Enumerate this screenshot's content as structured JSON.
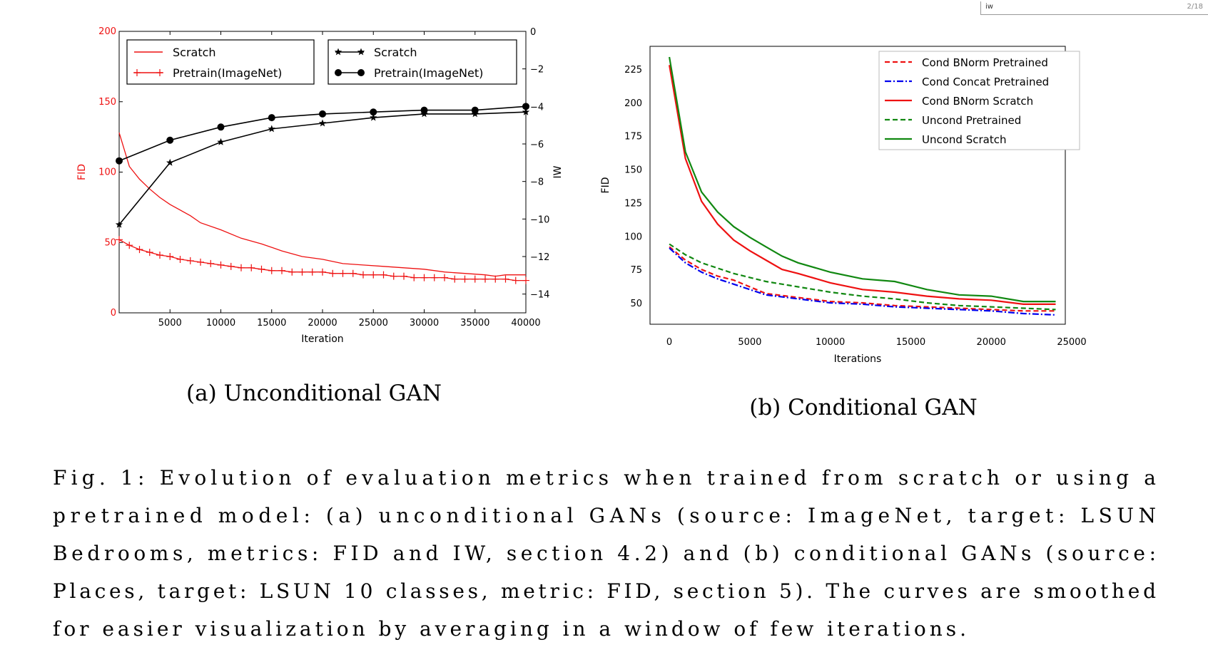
{
  "viewer": {
    "search_text": "iw",
    "page_indicator": "2/18"
  },
  "subfigure_a_caption": "(a) Unconditional GAN",
  "subfigure_b_caption": "(b) Conditional GAN",
  "caption_lines": [
    "Fig. 1: Evolution of evaluation metrics when trained from scratch or using a",
    "pretrained model: (a) unconditional GANs (source: ImageNet, target: LSUN",
    "Bedrooms, metrics: FID and IW, section 4.2) and (b) conditional GANs (source:",
    "Places, target: LSUN 10 classes, metric: FID, section 5). The curves are smoothed",
    "for easier visualization by averaging in a window of few iterations."
  ],
  "colors": {
    "red": "#ee1111",
    "black": "#000000",
    "blue": "#0000ee",
    "green": "#118811"
  },
  "chart_data": [
    {
      "type": "line",
      "xlabel": "Iteration",
      "ylabel": "FID",
      "y2label": "IW",
      "xlim": [
        0,
        40000
      ],
      "ylim": [
        0,
        200
      ],
      "y2lim": [
        0,
        -15
      ],
      "xticks": [
        5000,
        10000,
        15000,
        20000,
        25000,
        30000,
        35000,
        40000
      ],
      "yticks": [
        0,
        50,
        100,
        150,
        200
      ],
      "y2ticks": [
        0,
        -2,
        -4,
        -6,
        -8,
        -10,
        -12,
        -14
      ],
      "series": [
        {
          "name": "Scratch",
          "axis": "left",
          "color": "#ee1111",
          "marker": "none",
          "x": [
            0,
            1000,
            2000,
            3000,
            4000,
            5000,
            7000,
            8000,
            10000,
            12000,
            14000,
            16000,
            18000,
            20000,
            22000,
            24000,
            26000,
            28000,
            30000,
            32000,
            34000,
            36000,
            37000,
            38000,
            40000
          ],
          "y": [
            128,
            104,
            95,
            88,
            82,
            77,
            69,
            64,
            59,
            53,
            49,
            44,
            40,
            38,
            35,
            34,
            33,
            32,
            31,
            29,
            28,
            27,
            26,
            27,
            27
          ]
        },
        {
          "name": "Pretrain(ImageNet)",
          "axis": "left",
          "color": "#ee1111",
          "marker": "plus",
          "x": [
            0,
            1000,
            2000,
            3000,
            4000,
            5000,
            6000,
            7000,
            8000,
            9000,
            10000,
            11000,
            12000,
            13000,
            14000,
            15000,
            16000,
            17000,
            18000,
            19000,
            20000,
            21000,
            22000,
            23000,
            24000,
            25000,
            26000,
            27000,
            28000,
            29000,
            30000,
            31000,
            32000,
            33000,
            34000,
            35000,
            36000,
            37000,
            38000,
            39000,
            40000
          ],
          "y": [
            52,
            48,
            45,
            43,
            41,
            40,
            38,
            37,
            36,
            35,
            34,
            33,
            32,
            32,
            31,
            30,
            30,
            29,
            29,
            29,
            29,
            28,
            28,
            28,
            27,
            27,
            27,
            26,
            26,
            25,
            25,
            25,
            25,
            24,
            24,
            24,
            24,
            24,
            24,
            23,
            23
          ]
        },
        {
          "name": "Scratch",
          "axis": "right",
          "color": "#000000",
          "marker": "star",
          "x": [
            0,
            5000,
            10000,
            15000,
            20000,
            25000,
            30000,
            35000,
            40000
          ],
          "y": [
            -10.3,
            -7.0,
            -5.9,
            -5.2,
            -4.9,
            -4.6,
            -4.4,
            -4.4,
            -4.3
          ]
        },
        {
          "name": "Pretrain(ImageNet)",
          "axis": "right",
          "color": "#000000",
          "marker": "circle",
          "x": [
            0,
            5000,
            10000,
            15000,
            20000,
            25000,
            30000,
            35000,
            40000
          ],
          "y": [
            -6.9,
            -5.8,
            -5.1,
            -4.6,
            -4.4,
            -4.3,
            -4.2,
            -4.2,
            -4.0
          ]
        }
      ]
    },
    {
      "type": "line",
      "xlabel": "Iterations",
      "ylabel": "FID",
      "xlim": [
        -1200,
        24600
      ],
      "ylim": [
        34,
        242
      ],
      "xticks": [
        0,
        5000,
        10000,
        15000,
        20000,
        25000
      ],
      "yticks": [
        50,
        75,
        100,
        125,
        150,
        175,
        200,
        225
      ],
      "series": [
        {
          "name": "Cond BNorm Pretrained",
          "color": "#ee1111",
          "dash": "dashed",
          "x": [
            0,
            1000,
            2000,
            3000,
            4000,
            5000,
            6000,
            8000,
            10000,
            12000,
            14000,
            16000,
            18000,
            20000,
            22000,
            24000
          ],
          "y": [
            92,
            82,
            75,
            70,
            67,
            62,
            57,
            54,
            51,
            50,
            48,
            47,
            46,
            45,
            44,
            44
          ]
        },
        {
          "name": "Cond Concat Pretrained",
          "color": "#0000ee",
          "dash": "dashdot",
          "x": [
            0,
            1000,
            2000,
            3000,
            4000,
            5000,
            6000,
            8000,
            10000,
            12000,
            14000,
            16000,
            18000,
            20000,
            22000,
            24000
          ],
          "y": [
            91,
            80,
            73,
            68,
            64,
            60,
            56,
            53,
            50,
            49,
            47,
            46,
            45,
            44,
            42,
            41
          ]
        },
        {
          "name": "Cond BNorm Scratch",
          "color": "#ee1111",
          "dash": "solid",
          "x": [
            0,
            1000,
            2000,
            3000,
            4000,
            5000,
            6000,
            7000,
            8000,
            10000,
            12000,
            14000,
            16000,
            18000,
            20000,
            22000,
            24000
          ],
          "y": [
            228,
            158,
            126,
            109,
            97,
            89,
            82,
            75,
            72,
            65,
            60,
            58,
            55,
            53,
            52,
            49,
            49
          ]
        },
        {
          "name": "Uncond Pretrained",
          "color": "#118811",
          "dash": "dashed",
          "x": [
            0,
            1000,
            2000,
            3000,
            4000,
            5000,
            6000,
            8000,
            10000,
            12000,
            14000,
            16000,
            18000,
            20000,
            22000,
            24000
          ],
          "y": [
            94,
            86,
            80,
            76,
            72,
            69,
            66,
            62,
            58,
            55,
            53,
            50,
            48,
            47,
            46,
            45
          ]
        },
        {
          "name": "Uncond Scratch",
          "color": "#118811",
          "dash": "solid",
          "x": [
            0,
            1000,
            2000,
            3000,
            4000,
            5000,
            6000,
            7000,
            8000,
            10000,
            12000,
            14000,
            16000,
            18000,
            20000,
            22000,
            24000
          ],
          "y": [
            234,
            163,
            133,
            118,
            107,
            99,
            92,
            85,
            80,
            73,
            68,
            66,
            60,
            56,
            55,
            51,
            51
          ]
        }
      ]
    }
  ]
}
